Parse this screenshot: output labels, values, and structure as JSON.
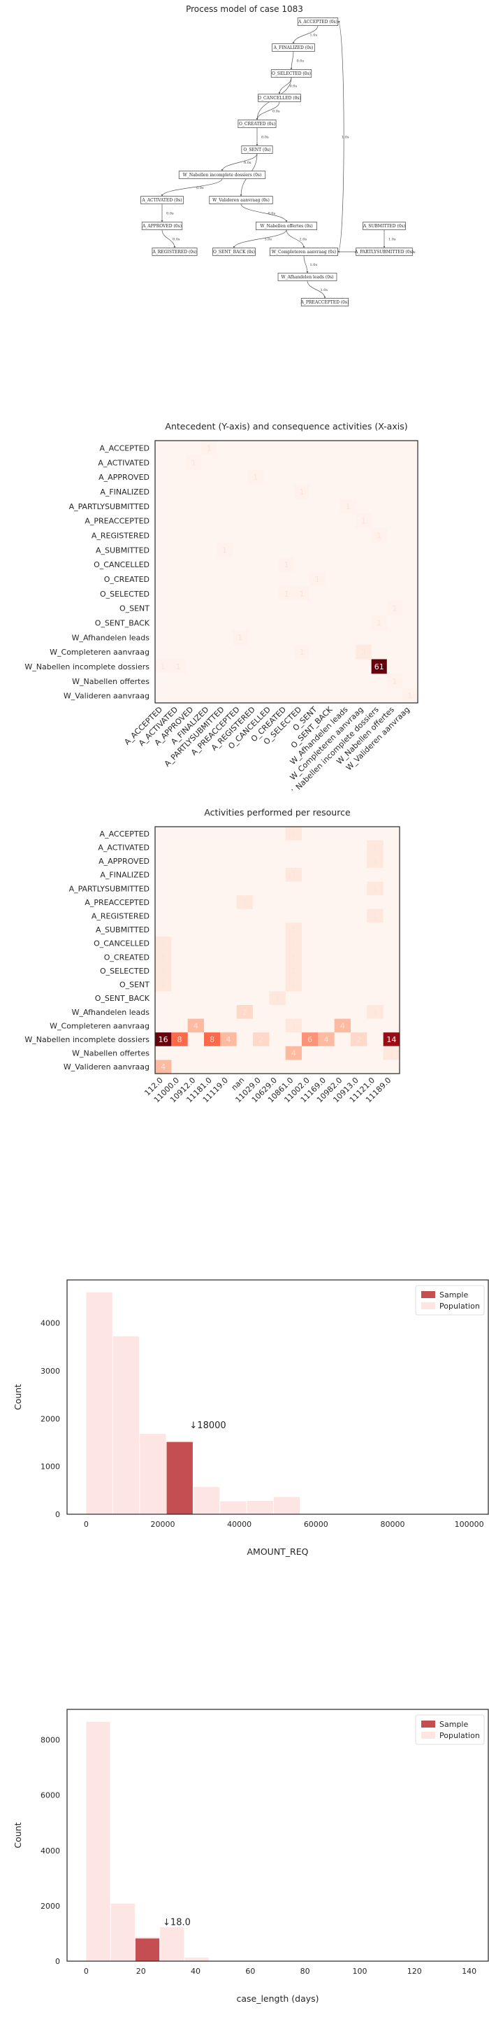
{
  "process_model": {
    "title": "Process model of case 1083",
    "nodes": [
      {
        "id": "A_ACCEPTED",
        "label": "A_ACCEPTED (0s)"
      },
      {
        "id": "A_FINALIZED",
        "label": "A_FINALIZED (0s)"
      },
      {
        "id": "O_SELECTED",
        "label": "O_SELECTED (0s)"
      },
      {
        "id": "O_CANCELLED",
        "label": "O_CANCELLED (0s)"
      },
      {
        "id": "O_CREATED",
        "label": "O_CREATED (0s)"
      },
      {
        "id": "O_SENT",
        "label": "O_SENT (0s)"
      },
      {
        "id": "W_Nabellen_incomplete",
        "label": "W_Nabellen incomplete dossiers (0s)"
      },
      {
        "id": "A_ACTIVATED",
        "label": "A_ACTIVATED (0s)"
      },
      {
        "id": "W_Valideren",
        "label": "W_Valideren aanvraag (0s)"
      },
      {
        "id": "A_APPROVED",
        "label": "A_APPROVED (0s)"
      },
      {
        "id": "W_Nabellen_offertes",
        "label": "W_Nabellen offertes (0s)"
      },
      {
        "id": "A_SUBMITTED",
        "label": "A_SUBMITTED (0s)"
      },
      {
        "id": "A_REGISTERED",
        "label": "A_REGISTERED (0s)"
      },
      {
        "id": "O_SENT_BACK",
        "label": "O_SENT_BACK (0s)"
      },
      {
        "id": "W_Completeren",
        "label": "W_Completeren aanvraag (0s)"
      },
      {
        "id": "A_PARTLYSUBMITTED",
        "label": "A_PARTLYSUBMITTED (0s)"
      },
      {
        "id": "W_Afhandelen",
        "label": "W_Afhandelen leads (0s)"
      },
      {
        "id": "A_PREACCEPTED",
        "label": "A_PREACCEPTED (0s)"
      }
    ],
    "edges": [
      {
        "from": "A_ACCEPTED",
        "to": "A_FINALIZED",
        "label": "1.0s"
      },
      {
        "from": "A_FINALIZED",
        "to": "O_SELECTED",
        "label": "0.0s"
      },
      {
        "from": "O_SELECTED",
        "to": "O_CANCELLED",
        "label": "0.0s"
      },
      {
        "from": "O_SELECTED",
        "to": "O_CREATED",
        "label": "1.0s"
      },
      {
        "from": "O_CANCELLED",
        "to": "O_CREATED",
        "label": "0.0s"
      },
      {
        "from": "O_CREATED",
        "to": "O_SENT",
        "label": "0.0s"
      },
      {
        "from": "O_SENT",
        "to": "W_Nabellen_incomplete",
        "label": "0.0s"
      },
      {
        "from": "O_SENT",
        "to": "W_Valideren",
        "label": "0.0s"
      },
      {
        "from": "W_Nabellen_incomplete",
        "to": "A_ACTIVATED",
        "label": "0.0s"
      },
      {
        "from": "A_ACTIVATED",
        "to": "A_APPROVED",
        "label": "0.0s"
      },
      {
        "from": "A_APPROVED",
        "to": "A_REGISTERED",
        "label": "0.0s"
      },
      {
        "from": "W_Valideren",
        "to": "W_Nabellen_offertes",
        "label": "0.0s"
      },
      {
        "from": "W_Nabellen_offertes",
        "to": "W_Completeren",
        "label": "2.0s"
      },
      {
        "from": "W_Nabellen_offertes",
        "to": "O_SENT_BACK",
        "label": "3.0s"
      },
      {
        "from": "A_SUBMITTED",
        "to": "A_PARTLYSUBMITTED",
        "label": "1.0s"
      },
      {
        "from": "A_PARTLYSUBMITTED",
        "to": "W_Completeren",
        "label": "1.0s"
      },
      {
        "from": "W_Completeren",
        "to": "W_Afhandelen",
        "label": "1.0s"
      },
      {
        "from": "W_Afhandelen",
        "to": "A_PREACCEPTED",
        "label": "1.0s"
      },
      {
        "from": "W_Completeren",
        "to": "A_ACCEPTED",
        "label": "1.0s"
      }
    ]
  },
  "chart_data": [
    {
      "type": "heatmap",
      "title": "Antecedent (Y-axis) and consequence activities (X-axis)",
      "y_categories": [
        "A_ACCEPTED",
        "A_ACTIVATED",
        "A_APPROVED",
        "A_FINALIZED",
        "A_PARTLYSUBMITTED",
        "A_PREACCEPTED",
        "A_REGISTERED",
        "A_SUBMITTED",
        "O_CANCELLED",
        "O_CREATED",
        "O_SELECTED",
        "O_SENT",
        "O_SENT_BACK",
        "W_Afhandelen leads",
        "W_Completeren aanvraag",
        "W_Nabellen incomplete dossiers",
        "W_Nabellen offertes",
        "W_Valideren aanvraag"
      ],
      "x_categories": [
        "A_ACCEPTED",
        "A_ACTIVATED",
        "A_APPROVED",
        "A_FINALIZED",
        "A_PARTLYSUBMITTED",
        "A_PREACCEPTED",
        "A_REGISTERED",
        "O_CANCELLED",
        "O_CREATED",
        "O_SELECTED",
        "O_SENT",
        "O_SENT_BACK",
        "W_Afhandelen leads",
        "W_Completeren aanvraag",
        "W_Nabellen incomplete dossiers",
        "W_Nabellen offertes",
        "W_Valideren aanvraag"
      ],
      "cells": [
        {
          "row": 0,
          "col": 3,
          "value": 1
        },
        {
          "row": 1,
          "col": 2,
          "value": 1
        },
        {
          "row": 2,
          "col": 6,
          "value": 1
        },
        {
          "row": 3,
          "col": 9,
          "value": 1
        },
        {
          "row": 4,
          "col": 12,
          "value": 1
        },
        {
          "row": 5,
          "col": 13,
          "value": 1
        },
        {
          "row": 6,
          "col": 14,
          "value": 1
        },
        {
          "row": 7,
          "col": 4,
          "value": 1
        },
        {
          "row": 8,
          "col": 8,
          "value": 1
        },
        {
          "row": 9,
          "col": 10,
          "value": 1
        },
        {
          "row": 10,
          "col": 8,
          "value": 1
        },
        {
          "row": 10,
          "col": 9,
          "value": 1
        },
        {
          "row": 11,
          "col": 15,
          "value": 1
        },
        {
          "row": 12,
          "col": 14,
          "value": 1
        },
        {
          "row": 13,
          "col": 5,
          "value": 1
        },
        {
          "row": 14,
          "col": 13,
          "value": 3
        },
        {
          "row": 14,
          "col": 9,
          "value": 1
        },
        {
          "row": 15,
          "col": 14,
          "value": 61
        },
        {
          "row": 15,
          "col": 0,
          "value": 1
        },
        {
          "row": 15,
          "col": 1,
          "value": 1
        },
        {
          "row": 16,
          "col": 15,
          "value": 1
        },
        {
          "row": 17,
          "col": 16,
          "value": 1
        }
      ],
      "vmax": 61
    },
    {
      "type": "heatmap",
      "title": "Activities performed per resource",
      "y_categories": [
        "A_ACCEPTED",
        "A_ACTIVATED",
        "A_APPROVED",
        "A_FINALIZED",
        "A_PARTLYSUBMITTED",
        "A_PREACCEPTED",
        "A_REGISTERED",
        "A_SUBMITTED",
        "O_CANCELLED",
        "O_CREATED",
        "O_SELECTED",
        "O_SENT",
        "O_SENT_BACK",
        "W_Afhandelen leads",
        "W_Completeren aanvraag",
        "W_Nabellen incomplete dossiers",
        "W_Nabellen offertes",
        "W_Valideren aanvraag"
      ],
      "x_categories": [
        "112.0",
        "11000.0",
        "10912.0",
        "11181.0",
        "11119.0",
        "nan",
        "11029.0",
        "10629.0",
        "10861.0",
        "11002.0",
        "11169.0",
        "10982.0",
        "10913.0",
        "11121.0",
        "11189.0"
      ],
      "cells": [
        {
          "row": 0,
          "col": 8,
          "value": 1
        },
        {
          "row": 1,
          "col": 13,
          "value": 1
        },
        {
          "row": 2,
          "col": 13,
          "value": 1
        },
        {
          "row": 3,
          "col": 8,
          "value": 1
        },
        {
          "row": 4,
          "col": 13,
          "value": 1
        },
        {
          "row": 5,
          "col": 5,
          "value": 1
        },
        {
          "row": 6,
          "col": 13,
          "value": 1
        },
        {
          "row": 7,
          "col": 8,
          "value": 1
        },
        {
          "row": 8,
          "col": 0,
          "value": 1
        },
        {
          "row": 8,
          "col": 8,
          "value": 1
        },
        {
          "row": 9,
          "col": 0,
          "value": 1
        },
        {
          "row": 9,
          "col": 8,
          "value": 1
        },
        {
          "row": 10,
          "col": 0,
          "value": 1
        },
        {
          "row": 10,
          "col": 8,
          "value": 1
        },
        {
          "row": 11,
          "col": 0,
          "value": 1
        },
        {
          "row": 11,
          "col": 8,
          "value": 1
        },
        {
          "row": 12,
          "col": 7,
          "value": 1
        },
        {
          "row": 13,
          "col": 5,
          "value": 2
        },
        {
          "row": 13,
          "col": 13,
          "value": 1
        },
        {
          "row": 14,
          "col": 2,
          "value": 4
        },
        {
          "row": 14,
          "col": 8,
          "value": 1
        },
        {
          "row": 14,
          "col": 11,
          "value": 4
        },
        {
          "row": 15,
          "col": 0,
          "value": 16
        },
        {
          "row": 15,
          "col": 1,
          "value": 8
        },
        {
          "row": 15,
          "col": 3,
          "value": 8
        },
        {
          "row": 15,
          "col": 4,
          "value": 4
        },
        {
          "row": 15,
          "col": 6,
          "value": 2
        },
        {
          "row": 15,
          "col": 9,
          "value": 6
        },
        {
          "row": 15,
          "col": 10,
          "value": 4
        },
        {
          "row": 15,
          "col": 12,
          "value": 2
        },
        {
          "row": 15,
          "col": 14,
          "value": 14
        },
        {
          "row": 16,
          "col": 8,
          "value": 4
        },
        {
          "row": 16,
          "col": 14,
          "value": 1
        },
        {
          "row": 17,
          "col": 0,
          "value": 4
        }
      ],
      "vmax": 16
    },
    {
      "type": "bar",
      "title": "",
      "xlabel": "AMOUNT_REQ",
      "ylabel": "Count",
      "xlim": [
        -5000,
        105000
      ],
      "ylim": [
        0,
        4900
      ],
      "xticks": [
        0,
        20000,
        40000,
        60000,
        80000,
        100000
      ],
      "yticks": [
        0,
        1000,
        2000,
        3000,
        4000
      ],
      "bin_width": 7000,
      "series": [
        {
          "name": "Sample",
          "color": "#c44e52",
          "bins": [
            {
              "x0": 21000,
              "x1": 28000,
              "value": 1510
            }
          ]
        },
        {
          "name": "Population",
          "color": "#fde5e4",
          "bins": [
            {
              "x0": 0,
              "x1": 7000,
              "value": 4640
            },
            {
              "x0": 7000,
              "x1": 14000,
              "value": 3720
            },
            {
              "x0": 14000,
              "x1": 21000,
              "value": 1680
            },
            {
              "x0": 21000,
              "x1": 28000,
              "value": 1530
            },
            {
              "x0": 28000,
              "x1": 35000,
              "value": 570
            },
            {
              "x0": 35000,
              "x1": 42000,
              "value": 270
            },
            {
              "x0": 42000,
              "x1": 49000,
              "value": 280
            },
            {
              "x0": 49000,
              "x1": 56000,
              "value": 360
            }
          ]
        }
      ],
      "annotation": {
        "text": "↓18000",
        "x": 27000,
        "y": 1800
      },
      "legend": "top-right"
    },
    {
      "type": "bar",
      "title": "",
      "xlabel": "case_length (days)",
      "ylabel": "Count",
      "xlim": [
        -7,
        147
      ],
      "ylim": [
        0,
        9100
      ],
      "xticks": [
        0,
        20,
        40,
        60,
        80,
        100,
        120,
        140
      ],
      "yticks": [
        0,
        2000,
        4000,
        6000,
        8000
      ],
      "series": [
        {
          "name": "Sample",
          "color": "#c44e52",
          "bins": [
            {
              "x0": 18,
              "x1": 27,
              "value": 820
            }
          ]
        },
        {
          "name": "Population",
          "color": "#fde5e4",
          "bins": [
            {
              "x0": 0,
              "x1": 9,
              "value": 8650
            },
            {
              "x0": 9,
              "x1": 18,
              "value": 2080
            },
            {
              "x0": 18,
              "x1": 27,
              "value": 870
            },
            {
              "x0": 27,
              "x1": 36,
              "value": 1230
            },
            {
              "x0": 36,
              "x1": 45,
              "value": 130
            }
          ]
        }
      ],
      "annotation": {
        "text": "↓18.0",
        "x": 28,
        "y": 1300
      },
      "legend": "top-right"
    }
  ]
}
